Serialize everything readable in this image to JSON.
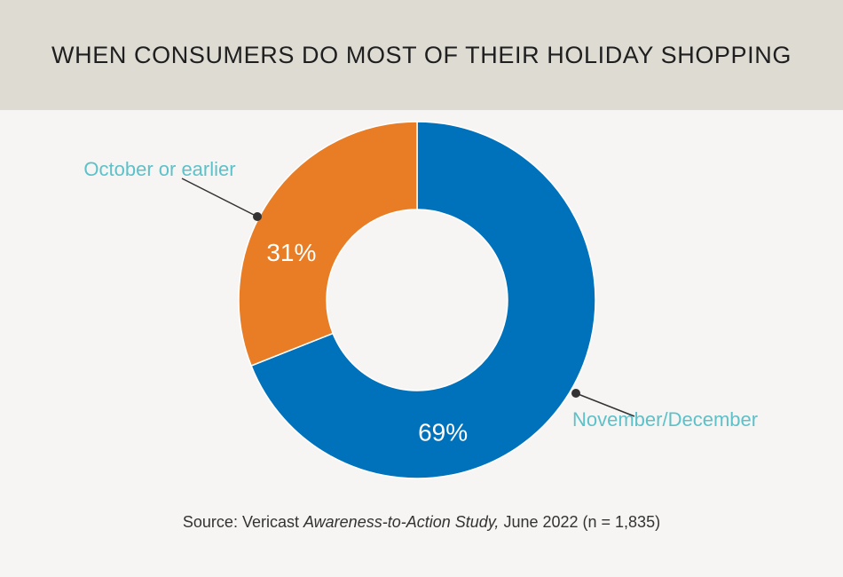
{
  "chart_data": {
    "type": "pie",
    "title": "WHEN CONSUMERS DO MOST OF THEIR HOLIDAY SHOPPING",
    "slices": [
      {
        "label": "November/December",
        "value": 69,
        "value_label": "69%",
        "color": "#0072bb"
      },
      {
        "label": "October or earlier",
        "value": 31,
        "value_label": "31%",
        "color": "#e87d25"
      }
    ],
    "donut": true,
    "legend": "callout-labels",
    "label_color": "#5cc1c9"
  },
  "source": {
    "prefix": "Source: Vericast ",
    "study": "Awareness-to-Action Study,",
    "suffix": " June 2022 (n = 1,835)"
  }
}
